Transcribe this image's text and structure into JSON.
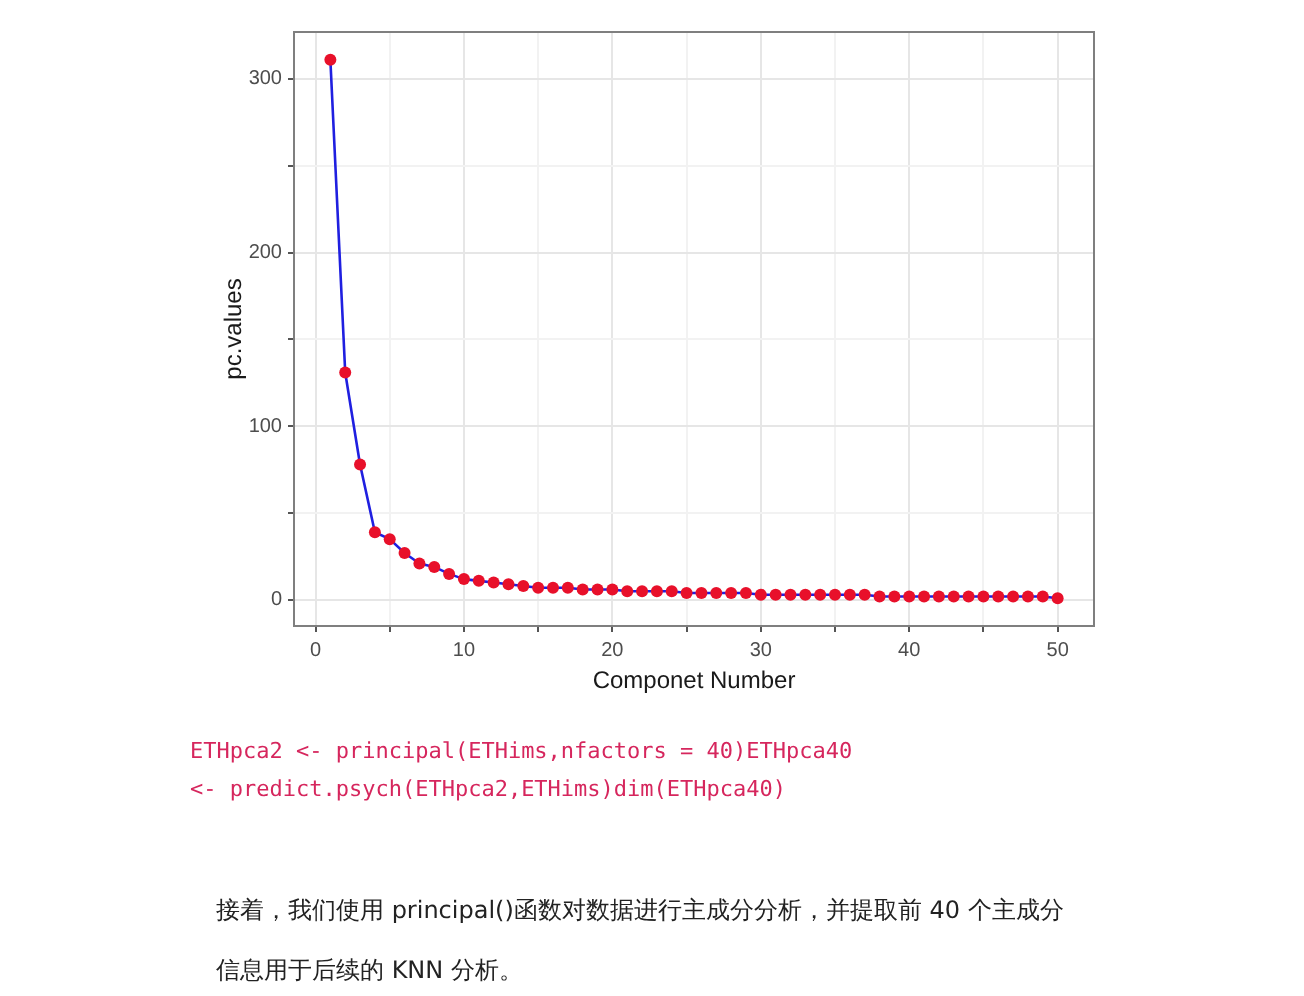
{
  "chart_data": {
    "type": "line",
    "xlabel": "Componet Number",
    "ylabel": "pc.values",
    "x": [
      1,
      2,
      3,
      4,
      5,
      6,
      7,
      8,
      9,
      10,
      11,
      12,
      13,
      14,
      15,
      16,
      17,
      18,
      19,
      20,
      21,
      22,
      23,
      24,
      25,
      26,
      27,
      28,
      29,
      30,
      31,
      32,
      33,
      34,
      35,
      36,
      37,
      38,
      39,
      40,
      41,
      42,
      43,
      44,
      45,
      46,
      47,
      48,
      49,
      50
    ],
    "series": [
      {
        "type": "scatter",
        "color": "#e8102a",
        "marker": "circle",
        "values": [
          311,
          131,
          78,
          39,
          35,
          27,
          21,
          19,
          15,
          12,
          11,
          10,
          9,
          8,
          7,
          7,
          7,
          6,
          6,
          6,
          5,
          5,
          5,
          5,
          4,
          4,
          4,
          4,
          4,
          3,
          3,
          3,
          3,
          3,
          3,
          3,
          3,
          2,
          2,
          2,
          2,
          2,
          2,
          2,
          2,
          2,
          2,
          2,
          2,
          1
        ]
      },
      {
        "color": "#1f1fe0",
        "marker": "none",
        "line_style": "solid",
        "values": [
          311,
          131,
          78,
          39,
          35,
          27,
          21,
          19,
          15,
          12,
          11,
          10,
          9,
          8,
          7,
          7,
          7,
          6,
          6,
          6,
          5,
          5,
          5,
          5,
          4,
          4,
          4,
          4,
          4,
          3,
          3,
          3,
          3,
          3,
          3,
          3,
          3,
          2,
          2,
          2,
          2,
          2,
          2,
          2,
          2,
          2,
          2,
          2,
          2,
          1
        ]
      }
    ],
    "xlim": [
      -1.45,
      52.45
    ],
    "ylim": [
      -15,
      327
    ],
    "xticks": [
      0,
      {
        "value": 5,
        "label": null
      },
      10,
      {
        "value": 15,
        "label": null
      },
      20,
      {
        "value": 25,
        "label": null
      },
      30,
      {
        "value": 35,
        "label": null
      },
      40,
      {
        "value": 45,
        "label": null
      },
      50
    ],
    "yticks": [
      0,
      {
        "value": 50,
        "label": null
      },
      100,
      {
        "value": 150,
        "label": null
      },
      200,
      {
        "value": 250,
        "label": null
      },
      300
    ],
    "grid": true,
    "legend": false,
    "annotations": [
      "ETHpca2 <- principal(ETHims,nfactors = 40)ETHpca40 <- predict.psych(ETHpca2,ETHims)dim(ETHpca40)",
      "接着，我们使用 principal()函数对数据进行主成分分析，并提取前 40 个主成分信息用于后续的 KNN 分析。"
    ]
  }
}
